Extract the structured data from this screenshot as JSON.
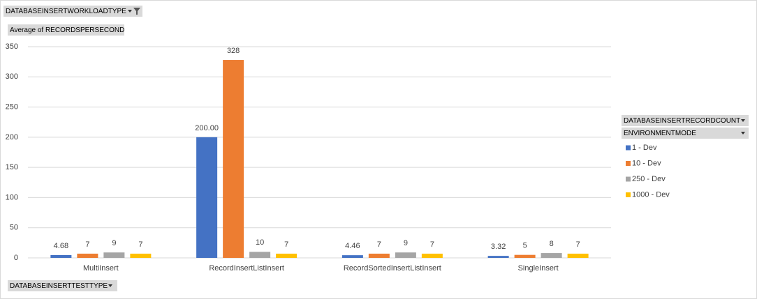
{
  "chart_data": {
    "type": "bar",
    "filter_field": "DATABASEINSERTWORKLOADTYPE",
    "value_field": "Average of RECORDSPERSECOND",
    "axis_field": "DATABASEINSERTTESTTYPE",
    "legend_fields": [
      "DATABASEINSERTRECORDCOUNT",
      "ENVIRONMENTMODE"
    ],
    "categories": [
      "MultiInsert",
      "RecordInsertListInsert",
      "RecordSortedInsertListInsert",
      "SingleInsert"
    ],
    "series": [
      {
        "name": "1 - Dev",
        "color": "#4472c4",
        "values": [
          4.68,
          200.0,
          4.46,
          3.32
        ],
        "value_labels": [
          "4.68",
          "200.00",
          "4.46",
          "3.32"
        ]
      },
      {
        "name": "10 - Dev",
        "color": "#ed7d31",
        "values": [
          7,
          328,
          7,
          5
        ]
      },
      {
        "name": "250 - Dev",
        "color": "#a5a5a5",
        "values": [
          9,
          10,
          9,
          8
        ]
      },
      {
        "name": "1000 - Dev",
        "color": "#ffc000",
        "values": [
          7,
          7,
          7,
          7
        ]
      }
    ],
    "ylim": [
      0,
      350
    ],
    "yticks": [
      0,
      50,
      100,
      150,
      200,
      250,
      300,
      350
    ],
    "grid": true
  }
}
